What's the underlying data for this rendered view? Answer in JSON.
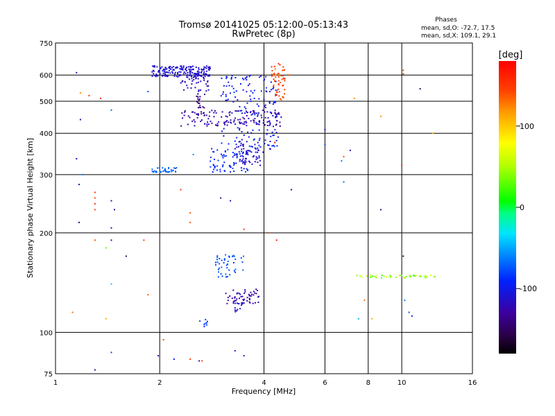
{
  "chart_data": {
    "type": "scatter",
    "title": "Tromsø 20141025 05:12:00–05:13:43",
    "subtitle": "RwPretec (8p)",
    "xlabel": "Frequency [MHz]",
    "ylabel": "Stationary phase Virtual Height [km]",
    "x_scale": "log",
    "y_scale": "log",
    "xlim": [
      1,
      16
    ],
    "ylim": [
      75,
      750
    ],
    "x_ticks": [
      1,
      2,
      4,
      6,
      8,
      10,
      16
    ],
    "x_tick_labels": [
      "1",
      "2",
      "4",
      "6",
      "8",
      "10",
      "16"
    ],
    "y_ticks": [
      75,
      100,
      200,
      300,
      400,
      500,
      600,
      750
    ],
    "y_tick_labels": [
      "75",
      "100",
      "200",
      "300",
      "400",
      "500",
      "600",
      "750"
    ],
    "grid": true,
    "stats": {
      "heading": "Phases",
      "line_o": "mean, sd,O: -72.7, 17.5",
      "line_x": "mean, sd,X: 109.1, 29.1"
    },
    "colorbar": {
      "label": "[deg]",
      "range": [
        -180,
        180
      ],
      "ticks": [
        100,
        0,
        -100
      ],
      "tick_labels": [
        "100",
        "0",
        "-100"
      ]
    },
    "clusters": [
      {
        "x": [
          1.9,
          2.8
        ],
        "y": [
          590,
          640
        ],
        "phase_mean": -110,
        "phase_sd": 15,
        "n": 180
      },
      {
        "x": [
          2.3,
          2.8
        ],
        "y": [
          535,
          600
        ],
        "phase_mean": -115,
        "phase_sd": 15,
        "n": 40
      },
      {
        "x": [
          1.9,
          2.25
        ],
        "y": [
          305,
          315
        ],
        "phase_mean": -70,
        "phase_sd": 10,
        "n": 35
      },
      {
        "x": [
          2.3,
          4.5
        ],
        "y": [
          420,
          470
        ],
        "phase_mean": -125,
        "phase_sd": 12,
        "n": 130
      },
      {
        "x": [
          2.8,
          3.6
        ],
        "y": [
          305,
          360
        ],
        "phase_mean": -90,
        "phase_sd": 20,
        "n": 70
      },
      {
        "x": [
          3.0,
          4.4
        ],
        "y": [
          350,
          600
        ],
        "phase_mean": -100,
        "phase_sd": 25,
        "n": 170
      },
      {
        "x": [
          3.3,
          3.9
        ],
        "y": [
          320,
          380
        ],
        "phase_mean": -115,
        "phase_sd": 10,
        "n": 55
      },
      {
        "x": [
          4.2,
          4.6
        ],
        "y": [
          505,
          650
        ],
        "phase_mean": 145,
        "phase_sd": 20,
        "n": 55
      },
      {
        "x": [
          2.55,
          2.7
        ],
        "y": [
          450,
          530
        ],
        "phase_mean": -140,
        "phase_sd": 10,
        "n": 25
      },
      {
        "x": [
          2.9,
          3.5
        ],
        "y": [
          147,
          172
        ],
        "phase_mean": -75,
        "phase_sd": 15,
        "n": 45
      },
      {
        "x": [
          3.1,
          3.9
        ],
        "y": [
          122,
          135
        ],
        "phase_mean": -125,
        "phase_sd": 10,
        "n": 55
      },
      {
        "x": [
          3.3,
          3.5
        ],
        "y": [
          114,
          124
        ],
        "phase_mean": -110,
        "phase_sd": 10,
        "n": 12
      },
      {
        "x": [
          2.6,
          2.75
        ],
        "y": [
          104,
          111
        ],
        "phase_mean": -80,
        "phase_sd": 10,
        "n": 8
      },
      {
        "x": [
          7.4,
          12.5
        ],
        "y": [
          146,
          149
        ],
        "phase_mean": 45,
        "phase_sd": 60,
        "n": 45
      }
    ],
    "points": [
      {
        "x": 1.15,
        "y": 610,
        "phase": -120
      },
      {
        "x": 1.18,
        "y": 530,
        "phase": 120
      },
      {
        "x": 1.25,
        "y": 520,
        "phase": 150
      },
      {
        "x": 1.35,
        "y": 510,
        "phase": 160
      },
      {
        "x": 1.45,
        "y": 470,
        "phase": -70
      },
      {
        "x": 1.18,
        "y": 440,
        "phase": -130
      },
      {
        "x": 1.15,
        "y": 335,
        "phase": -110
      },
      {
        "x": 1.2,
        "y": 300,
        "phase": -60
      },
      {
        "x": 1.17,
        "y": 280,
        "phase": -120
      },
      {
        "x": 1.3,
        "y": 265,
        "phase": 150
      },
      {
        "x": 1.3,
        "y": 255,
        "phase": 140
      },
      {
        "x": 1.3,
        "y": 245,
        "phase": 150
      },
      {
        "x": 1.3,
        "y": 235,
        "phase": 140
      },
      {
        "x": 1.45,
        "y": 250,
        "phase": -120
      },
      {
        "x": 1.48,
        "y": 235,
        "phase": -120
      },
      {
        "x": 1.17,
        "y": 215,
        "phase": -130
      },
      {
        "x": 1.45,
        "y": 207,
        "phase": -130
      },
      {
        "x": 1.3,
        "y": 190,
        "phase": 140
      },
      {
        "x": 1.45,
        "y": 190,
        "phase": -120
      },
      {
        "x": 1.4,
        "y": 180,
        "phase": 30
      },
      {
        "x": 1.6,
        "y": 170,
        "phase": -150
      },
      {
        "x": 1.45,
        "y": 140,
        "phase": -40
      },
      {
        "x": 1.12,
        "y": 115,
        "phase": 130
      },
      {
        "x": 1.4,
        "y": 110,
        "phase": 110
      },
      {
        "x": 1.45,
        "y": 87,
        "phase": -80
      },
      {
        "x": 1.3,
        "y": 77,
        "phase": -130
      },
      {
        "x": 1.85,
        "y": 535,
        "phase": -80
      },
      {
        "x": 1.8,
        "y": 190,
        "phase": 150
      },
      {
        "x": 1.85,
        "y": 130,
        "phase": 140
      },
      {
        "x": 1.98,
        "y": 85,
        "phase": -130
      },
      {
        "x": 2.05,
        "y": 95,
        "phase": 140
      },
      {
        "x": 2.2,
        "y": 83,
        "phase": -100
      },
      {
        "x": 2.45,
        "y": 83,
        "phase": 150
      },
      {
        "x": 2.6,
        "y": 82,
        "phase": -120
      },
      {
        "x": 2.65,
        "y": 82,
        "phase": 150
      },
      {
        "x": 2.45,
        "y": 230,
        "phase": 140
      },
      {
        "x": 2.45,
        "y": 215,
        "phase": 140
      },
      {
        "x": 2.3,
        "y": 270,
        "phase": 150
      },
      {
        "x": 2.5,
        "y": 345,
        "phase": -60
      },
      {
        "x": 3.0,
        "y": 255,
        "phase": -130
      },
      {
        "x": 3.2,
        "y": 250,
        "phase": -120
      },
      {
        "x": 3.5,
        "y": 205,
        "phase": 150
      },
      {
        "x": 3.9,
        "y": 320,
        "phase": -130
      },
      {
        "x": 4.1,
        "y": 200,
        "phase": 150
      },
      {
        "x": 4.35,
        "y": 190,
        "phase": 170
      },
      {
        "x": 4.3,
        "y": 375,
        "phase": 170
      },
      {
        "x": 4.8,
        "y": 270,
        "phase": -130
      },
      {
        "x": 4.7,
        "y": 600,
        "phase": 140
      },
      {
        "x": 3.3,
        "y": 88,
        "phase": -120
      },
      {
        "x": 3.5,
        "y": 85,
        "phase": -130
      },
      {
        "x": 6.0,
        "y": 410,
        "phase": -110
      },
      {
        "x": 6.0,
        "y": 370,
        "phase": -80
      },
      {
        "x": 6.7,
        "y": 330,
        "phase": -60
      },
      {
        "x": 6.8,
        "y": 340,
        "phase": 140
      },
      {
        "x": 7.1,
        "y": 355,
        "phase": -120
      },
      {
        "x": 6.8,
        "y": 285,
        "phase": -70
      },
      {
        "x": 7.3,
        "y": 510,
        "phase": 120
      },
      {
        "x": 8.7,
        "y": 450,
        "phase": 120
      },
      {
        "x": 8.7,
        "y": 235,
        "phase": -130
      },
      {
        "x": 7.8,
        "y": 125,
        "phase": 130
      },
      {
        "x": 7.5,
        "y": 110,
        "phase": -50
      },
      {
        "x": 8.2,
        "y": 110,
        "phase": 110
      },
      {
        "x": 10.1,
        "y": 170,
        "phase": -150
      },
      {
        "x": 10.1,
        "y": 620,
        "phase": 150
      },
      {
        "x": 10.1,
        "y": 605,
        "phase": 160
      },
      {
        "x": 10.0,
        "y": 320,
        "phase": 160
      },
      {
        "x": 10.5,
        "y": 115,
        "phase": -80
      },
      {
        "x": 10.7,
        "y": 112,
        "phase": -100
      },
      {
        "x": 10.2,
        "y": 125,
        "phase": -60
      },
      {
        "x": 11.3,
        "y": 545,
        "phase": -150
      },
      {
        "x": 12.3,
        "y": 400,
        "phase": 110
      }
    ]
  }
}
